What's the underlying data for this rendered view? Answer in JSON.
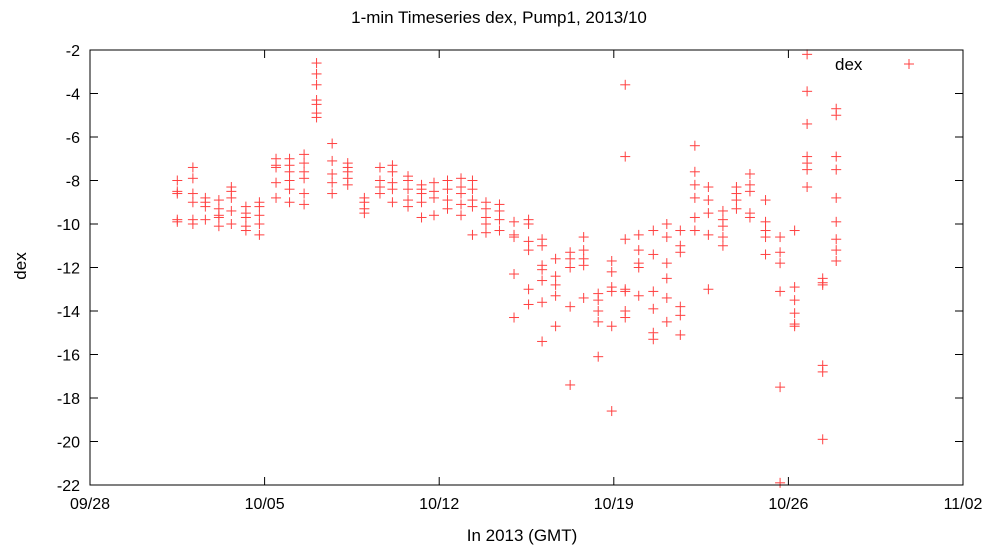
{
  "chart_data": {
    "type": "scatter",
    "title": "1-min Timeseries dex, Pump1, 2013/10",
    "xlabel": "In 2013 (GMT)",
    "ylabel": "dex",
    "legend": {
      "label": "dex",
      "placement": "top-right"
    },
    "colors": {
      "series": "#ff4040",
      "axis": "#000000"
    },
    "xlim": [
      "2013-09-28",
      "2013-11-02"
    ],
    "ylim": [
      -22,
      -2
    ],
    "x_ticks": [
      "09/28",
      "10/05",
      "10/12",
      "10/19",
      "10/26",
      "11/02"
    ],
    "y_ticks": [
      "-2",
      "-4",
      "-6",
      "-8",
      "-10",
      "-12",
      "-14",
      "-16",
      "-18",
      "-20",
      "-22"
    ],
    "grid": false,
    "series": [
      {
        "name": "dex",
        "marker": "plus",
        "points": [
          [
            "2013-10-01T12:00",
            -8.0
          ],
          [
            "2013-10-01T12:00",
            -8.6
          ],
          [
            "2013-10-01T12:00",
            -9.8
          ],
          [
            "2013-10-01T12:00",
            -8.5
          ],
          [
            "2013-10-01T12:00",
            -9.9
          ],
          [
            "2013-10-02T03:00",
            -7.4
          ],
          [
            "2013-10-02T03:00",
            -7.9
          ],
          [
            "2013-10-02T03:00",
            -8.6
          ],
          [
            "2013-10-02T03:00",
            -9.0
          ],
          [
            "2013-10-02T03:00",
            -9.8
          ],
          [
            "2013-10-02T03:00",
            -10.0
          ],
          [
            "2013-10-02T15:00",
            -8.8
          ],
          [
            "2013-10-02T15:00",
            -9.0
          ],
          [
            "2013-10-02T15:00",
            -9.2
          ],
          [
            "2013-10-02T15:00",
            -9.8
          ],
          [
            "2013-10-03T04:00",
            -8.9
          ],
          [
            "2013-10-03T04:00",
            -9.3
          ],
          [
            "2013-10-03T04:00",
            -9.6
          ],
          [
            "2013-10-03T04:00",
            -9.7
          ],
          [
            "2013-10-03T04:00",
            -10.1
          ],
          [
            "2013-10-03T16:00",
            -8.3
          ],
          [
            "2013-10-03T16:00",
            -8.5
          ],
          [
            "2013-10-03T16:00",
            -8.8
          ],
          [
            "2013-10-03T16:00",
            -9.4
          ],
          [
            "2013-10-03T16:00",
            -10.0
          ],
          [
            "2013-10-04T06:00",
            -9.2
          ],
          [
            "2013-10-04T06:00",
            -9.5
          ],
          [
            "2013-10-04T06:00",
            -9.7
          ],
          [
            "2013-10-04T06:00",
            -10.1
          ],
          [
            "2013-10-04T06:00",
            -10.3
          ],
          [
            "2013-10-04T19:00",
            -9.0
          ],
          [
            "2013-10-04T19:00",
            -9.2
          ],
          [
            "2013-10-04T19:00",
            -9.6
          ],
          [
            "2013-10-04T19:00",
            -10.0
          ],
          [
            "2013-10-04T19:00",
            -10.5
          ],
          [
            "2013-10-05T11:00",
            -7.0
          ],
          [
            "2013-10-05T11:00",
            -7.3
          ],
          [
            "2013-10-05T11:00",
            -7.4
          ],
          [
            "2013-10-05T11:00",
            -8.1
          ],
          [
            "2013-10-05T11:00",
            -8.8
          ],
          [
            "2013-10-06T00:00",
            -7.0
          ],
          [
            "2013-10-06T00:00",
            -7.3
          ],
          [
            "2013-10-06T00:00",
            -7.6
          ],
          [
            "2013-10-06T00:00",
            -8.0
          ],
          [
            "2013-10-06T00:00",
            -8.4
          ],
          [
            "2013-10-06T00:00",
            -9.0
          ],
          [
            "2013-10-06T14:00",
            -6.8
          ],
          [
            "2013-10-06T14:00",
            -7.2
          ],
          [
            "2013-10-06T14:00",
            -7.6
          ],
          [
            "2013-10-06T14:00",
            -7.9
          ],
          [
            "2013-10-06T14:00",
            -8.6
          ],
          [
            "2013-10-06T14:00",
            -9.1
          ],
          [
            "2013-10-07T02:00",
            -2.6
          ],
          [
            "2013-10-07T02:00",
            -3.1
          ],
          [
            "2013-10-07T02:00",
            -3.6
          ],
          [
            "2013-10-07T02:00",
            -4.3
          ],
          [
            "2013-10-07T02:00",
            -4.5
          ],
          [
            "2013-10-07T02:00",
            -4.9
          ],
          [
            "2013-10-07T02:00",
            -5.1
          ],
          [
            "2013-10-07T17:00",
            -6.3
          ],
          [
            "2013-10-07T17:00",
            -7.1
          ],
          [
            "2013-10-07T17:00",
            -7.7
          ],
          [
            "2013-10-07T17:00",
            -8.1
          ],
          [
            "2013-10-07T17:00",
            -8.6
          ],
          [
            "2013-10-08T08:00",
            -7.2
          ],
          [
            "2013-10-08T08:00",
            -7.4
          ],
          [
            "2013-10-08T08:00",
            -7.6
          ],
          [
            "2013-10-08T08:00",
            -7.9
          ],
          [
            "2013-10-08T08:00",
            -8.2
          ],
          [
            "2013-10-09T00:00",
            -8.8
          ],
          [
            "2013-10-09T00:00",
            -9.0
          ],
          [
            "2013-10-09T00:00",
            -9.3
          ],
          [
            "2013-10-09T00:00",
            -9.5
          ],
          [
            "2013-10-09T15:00",
            -7.4
          ],
          [
            "2013-10-09T15:00",
            -8.0
          ],
          [
            "2013-10-09T15:00",
            -8.3
          ],
          [
            "2013-10-09T15:00",
            -8.6
          ],
          [
            "2013-10-10T03:00",
            -7.3
          ],
          [
            "2013-10-10T03:00",
            -7.6
          ],
          [
            "2013-10-10T03:00",
            -8.1
          ],
          [
            "2013-10-10T03:00",
            -8.4
          ],
          [
            "2013-10-10T03:00",
            -9.0
          ],
          [
            "2013-10-10T18:00",
            -7.8
          ],
          [
            "2013-10-10T18:00",
            -8.0
          ],
          [
            "2013-10-10T18:00",
            -8.4
          ],
          [
            "2013-10-10T18:00",
            -8.9
          ],
          [
            "2013-10-10T18:00",
            -9.2
          ],
          [
            "2013-10-11T07:00",
            -8.2
          ],
          [
            "2013-10-11T07:00",
            -8.4
          ],
          [
            "2013-10-11T07:00",
            -8.6
          ],
          [
            "2013-10-11T07:00",
            -9.0
          ],
          [
            "2013-10-11T07:00",
            -9.7
          ],
          [
            "2013-10-11T19:00",
            -8.1
          ],
          [
            "2013-10-11T19:00",
            -8.5
          ],
          [
            "2013-10-11T19:00",
            -8.8
          ],
          [
            "2013-10-11T19:00",
            -9.6
          ],
          [
            "2013-10-12T08:00",
            -8.0
          ],
          [
            "2013-10-12T08:00",
            -8.4
          ],
          [
            "2013-10-12T08:00",
            -8.9
          ],
          [
            "2013-10-12T08:00",
            -9.3
          ],
          [
            "2013-10-12T21:00",
            -7.9
          ],
          [
            "2013-10-12T21:00",
            -8.3
          ],
          [
            "2013-10-12T21:00",
            -8.6
          ],
          [
            "2013-10-12T21:00",
            -9.1
          ],
          [
            "2013-10-12T21:00",
            -9.6
          ],
          [
            "2013-10-13T08:00",
            -8.0
          ],
          [
            "2013-10-13T08:00",
            -8.4
          ],
          [
            "2013-10-13T08:00",
            -8.9
          ],
          [
            "2013-10-13T08:00",
            -9.2
          ],
          [
            "2013-10-13T08:00",
            -10.5
          ],
          [
            "2013-10-13T21:00",
            -9.0
          ],
          [
            "2013-10-13T21:00",
            -9.3
          ],
          [
            "2013-10-13T21:00",
            -9.7
          ],
          [
            "2013-10-13T21:00",
            -10.0
          ],
          [
            "2013-10-13T21:00",
            -10.4
          ],
          [
            "2013-10-14T10:00",
            -9.1
          ],
          [
            "2013-10-14T10:00",
            -9.4
          ],
          [
            "2013-10-14T10:00",
            -9.8
          ],
          [
            "2013-10-14T10:00",
            -10.3
          ],
          [
            "2013-10-15T00:00",
            -9.9
          ],
          [
            "2013-10-15T00:00",
            -10.5
          ],
          [
            "2013-10-15T00:00",
            -10.6
          ],
          [
            "2013-10-15T00:00",
            -12.3
          ],
          [
            "2013-10-15T00:00",
            -14.3
          ],
          [
            "2013-10-15T14:00",
            -9.8
          ],
          [
            "2013-10-15T14:00",
            -10.0
          ],
          [
            "2013-10-15T14:00",
            -10.8
          ],
          [
            "2013-10-15T14:00",
            -11.2
          ],
          [
            "2013-10-15T14:00",
            -13.0
          ],
          [
            "2013-10-15T14:00",
            -13.7
          ],
          [
            "2013-10-16T03:00",
            -10.7
          ],
          [
            "2013-10-16T03:00",
            -11.0
          ],
          [
            "2013-10-16T03:00",
            -11.9
          ],
          [
            "2013-10-16T03:00",
            -12.1
          ],
          [
            "2013-10-16T03:00",
            -12.6
          ],
          [
            "2013-10-16T03:00",
            -13.6
          ],
          [
            "2013-10-16T03:00",
            -15.4
          ],
          [
            "2013-10-16T16:00",
            -11.6
          ],
          [
            "2013-10-16T16:00",
            -12.4
          ],
          [
            "2013-10-16T16:00",
            -12.8
          ],
          [
            "2013-10-16T16:00",
            -13.3
          ],
          [
            "2013-10-16T16:00",
            -14.7
          ],
          [
            "2013-10-17T06:00",
            -11.3
          ],
          [
            "2013-10-17T06:00",
            -11.6
          ],
          [
            "2013-10-17T06:00",
            -12.0
          ],
          [
            "2013-10-17T06:00",
            -13.8
          ],
          [
            "2013-10-17T06:00",
            -17.4
          ],
          [
            "2013-10-17T19:00",
            -10.6
          ],
          [
            "2013-10-17T19:00",
            -11.2
          ],
          [
            "2013-10-17T19:00",
            -11.6
          ],
          [
            "2013-10-17T19:00",
            -11.9
          ],
          [
            "2013-10-17T19:00",
            -13.4
          ],
          [
            "2013-10-18T09:00",
            -13.2
          ],
          [
            "2013-10-18T09:00",
            -13.5
          ],
          [
            "2013-10-18T09:00",
            -14.0
          ],
          [
            "2013-10-18T09:00",
            -14.5
          ],
          [
            "2013-10-18T09:00",
            -16.1
          ],
          [
            "2013-10-18T22:00",
            -11.7
          ],
          [
            "2013-10-18T22:00",
            -12.2
          ],
          [
            "2013-10-18T22:00",
            -12.9
          ],
          [
            "2013-10-18T22:00",
            -13.1
          ],
          [
            "2013-10-18T22:00",
            -14.7
          ],
          [
            "2013-10-18T22:00",
            -18.6
          ],
          [
            "2013-10-19T11:00",
            -3.6
          ],
          [
            "2013-10-19T11:00",
            -6.9
          ],
          [
            "2013-10-19T11:00",
            -10.7
          ],
          [
            "2013-10-19T11:00",
            -13.0
          ],
          [
            "2013-10-19T11:00",
            -13.1
          ],
          [
            "2013-10-19T11:00",
            -14.0
          ],
          [
            "2013-10-19T11:00",
            -14.3
          ],
          [
            "2013-10-20T00:00",
            -10.5
          ],
          [
            "2013-10-20T00:00",
            -11.2
          ],
          [
            "2013-10-20T00:00",
            -11.8
          ],
          [
            "2013-10-20T00:00",
            -12.0
          ],
          [
            "2013-10-20T00:00",
            -13.3
          ],
          [
            "2013-10-20T14:00",
            -10.3
          ],
          [
            "2013-10-20T14:00",
            -11.4
          ],
          [
            "2013-10-20T14:00",
            -13.1
          ],
          [
            "2013-10-20T14:00",
            -13.9
          ],
          [
            "2013-10-20T14:00",
            -15.0
          ],
          [
            "2013-10-20T14:00",
            -15.3
          ],
          [
            "2013-10-21T03:00",
            -10.0
          ],
          [
            "2013-10-21T03:00",
            -10.6
          ],
          [
            "2013-10-21T03:00",
            -11.8
          ],
          [
            "2013-10-21T03:00",
            -12.5
          ],
          [
            "2013-10-21T03:00",
            -13.4
          ],
          [
            "2013-10-21T03:00",
            -14.5
          ],
          [
            "2013-10-21T16:00",
            -10.3
          ],
          [
            "2013-10-21T16:00",
            -11.0
          ],
          [
            "2013-10-21T16:00",
            -11.3
          ],
          [
            "2013-10-21T16:00",
            -13.8
          ],
          [
            "2013-10-21T16:00",
            -14.2
          ],
          [
            "2013-10-21T16:00",
            -15.1
          ],
          [
            "2013-10-22T06:00",
            -6.4
          ],
          [
            "2013-10-22T06:00",
            -7.6
          ],
          [
            "2013-10-22T06:00",
            -8.2
          ],
          [
            "2013-10-22T06:00",
            -8.8
          ],
          [
            "2013-10-22T06:00",
            -9.7
          ],
          [
            "2013-10-22T06:00",
            -10.3
          ],
          [
            "2013-10-22T19:00",
            -8.3
          ],
          [
            "2013-10-22T19:00",
            -8.9
          ],
          [
            "2013-10-22T19:00",
            -9.5
          ],
          [
            "2013-10-22T19:00",
            -10.5
          ],
          [
            "2013-10-22T19:00",
            -13.0
          ],
          [
            "2013-10-23T09:00",
            -9.4
          ],
          [
            "2013-10-23T09:00",
            -9.8
          ],
          [
            "2013-10-23T09:00",
            -10.1
          ],
          [
            "2013-10-23T09:00",
            -10.6
          ],
          [
            "2013-10-23T09:00",
            -11.0
          ],
          [
            "2013-10-23T22:00",
            -8.3
          ],
          [
            "2013-10-23T22:00",
            -8.6
          ],
          [
            "2013-10-23T22:00",
            -8.9
          ],
          [
            "2013-10-23T22:00",
            -9.3
          ],
          [
            "2013-10-24T11:00",
            -7.7
          ],
          [
            "2013-10-24T11:00",
            -8.2
          ],
          [
            "2013-10-24T11:00",
            -8.5
          ],
          [
            "2013-10-24T11:00",
            -9.5
          ],
          [
            "2013-10-24T11:00",
            -9.7
          ],
          [
            "2013-10-25T02:00",
            -8.9
          ],
          [
            "2013-10-25T02:00",
            -9.9
          ],
          [
            "2013-10-25T02:00",
            -10.3
          ],
          [
            "2013-10-25T02:00",
            -10.6
          ],
          [
            "2013-10-25T02:00",
            -11.4
          ],
          [
            "2013-10-25T16:00",
            -10.6
          ],
          [
            "2013-10-25T16:00",
            -11.3
          ],
          [
            "2013-10-25T16:00",
            -11.8
          ],
          [
            "2013-10-25T16:00",
            -13.1
          ],
          [
            "2013-10-25T16:00",
            -17.5
          ],
          [
            "2013-10-25T16:00",
            -21.9
          ],
          [
            "2013-10-26T06:00",
            -10.3
          ],
          [
            "2013-10-26T06:00",
            -12.9
          ],
          [
            "2013-10-26T06:00",
            -13.5
          ],
          [
            "2013-10-26T06:00",
            -14.1
          ],
          [
            "2013-10-26T06:00",
            -14.6
          ],
          [
            "2013-10-26T06:00",
            -14.7
          ],
          [
            "2013-10-26T18:00",
            -2.2
          ],
          [
            "2013-10-26T18:00",
            -3.9
          ],
          [
            "2013-10-26T18:00",
            -5.4
          ],
          [
            "2013-10-26T18:00",
            -6.9
          ],
          [
            "2013-10-26T18:00",
            -7.2
          ],
          [
            "2013-10-26T18:00",
            -7.5
          ],
          [
            "2013-10-26T18:00",
            -8.3
          ],
          [
            "2013-10-27T09:00",
            -12.5
          ],
          [
            "2013-10-27T09:00",
            -12.7
          ],
          [
            "2013-10-27T09:00",
            -12.8
          ],
          [
            "2013-10-27T09:00",
            -16.5
          ],
          [
            "2013-10-27T09:00",
            -16.8
          ],
          [
            "2013-10-27T09:00",
            -19.9
          ],
          [
            "2013-10-27T22:00",
            -4.7
          ],
          [
            "2013-10-27T22:00",
            -5.0
          ],
          [
            "2013-10-27T22:00",
            -6.9
          ],
          [
            "2013-10-27T22:00",
            -7.5
          ],
          [
            "2013-10-27T22:00",
            -8.8
          ],
          [
            "2013-10-27T22:00",
            -9.9
          ],
          [
            "2013-10-27T22:00",
            -10.7
          ],
          [
            "2013-10-27T22:00",
            -11.2
          ],
          [
            "2013-10-27T22:00",
            -11.7
          ]
        ]
      }
    ]
  }
}
